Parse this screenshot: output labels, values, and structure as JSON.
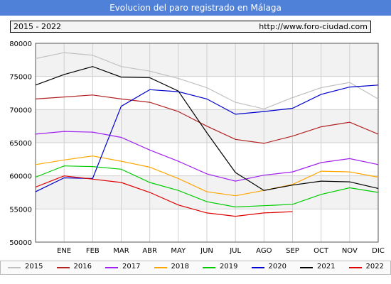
{
  "header": {
    "title": "Evolucion del paro registrado en Málaga"
  },
  "info": {
    "range": "2015 - 2022",
    "url": "http://www.foro-ciudad.com"
  },
  "chart_data": {
    "type": "line",
    "categories": [
      "",
      "ENE",
      "FEB",
      "MAR",
      "ABR",
      "MAY",
      "JUN",
      "JUL",
      "AGO",
      "SEP",
      "OCT",
      "NOV",
      "DIC"
    ],
    "yticks": [
      50000,
      55000,
      60000,
      65000,
      70000,
      75000,
      80000
    ],
    "ytick_labels": [
      "50000",
      "55000",
      "60000",
      "65000",
      "70000",
      "75000",
      "80000"
    ],
    "ylim": [
      50000,
      80000
    ],
    "grid": true,
    "legend_position": "bottom",
    "series": [
      {
        "name": "2015",
        "color": "#c0c0c0",
        "values": [
          77700,
          78600,
          78200,
          76500,
          75800,
          74700,
          73300,
          71100,
          70100,
          71800,
          73300,
          74100,
          71600
        ]
      },
      {
        "name": "2016",
        "color": "#b22222",
        "values": [
          71600,
          71900,
          72200,
          71600,
          71100,
          69700,
          67500,
          65500,
          64900,
          66000,
          67400,
          68100,
          66300
        ]
      },
      {
        "name": "2017",
        "color": "#a020f0",
        "values": [
          66300,
          66700,
          66600,
          65800,
          63900,
          62200,
          60300,
          59200,
          60100,
          60600,
          62000,
          62600,
          61700
        ]
      },
      {
        "name": "2018",
        "color": "#ffa500",
        "values": [
          61700,
          62400,
          63000,
          62200,
          61300,
          59600,
          57600,
          57000,
          57800,
          58700,
          60700,
          60600,
          59800
        ]
      },
      {
        "name": "2019",
        "color": "#00cc00",
        "values": [
          59800,
          61500,
          61400,
          61000,
          59000,
          57800,
          56100,
          55300,
          55500,
          55700,
          57200,
          58200,
          57500
        ]
      },
      {
        "name": "2020",
        "color": "#0000cc",
        "values": [
          57600,
          59700,
          59600,
          70500,
          73000,
          72700,
          71600,
          69300,
          69700,
          70200,
          72300,
          73400,
          73700
        ]
      },
      {
        "name": "2021",
        "color": "#000000",
        "values": [
          73700,
          75300,
          76500,
          74900,
          74800,
          72800,
          66500,
          60500,
          57800,
          58600,
          59200,
          59100,
          58100
        ]
      },
      {
        "name": "2022",
        "color": "#dd0000",
        "values": [
          58300,
          60000,
          59500,
          59000,
          57500,
          55600,
          54400,
          53900,
          54400,
          54600,
          null,
          null,
          null
        ]
      }
    ]
  }
}
